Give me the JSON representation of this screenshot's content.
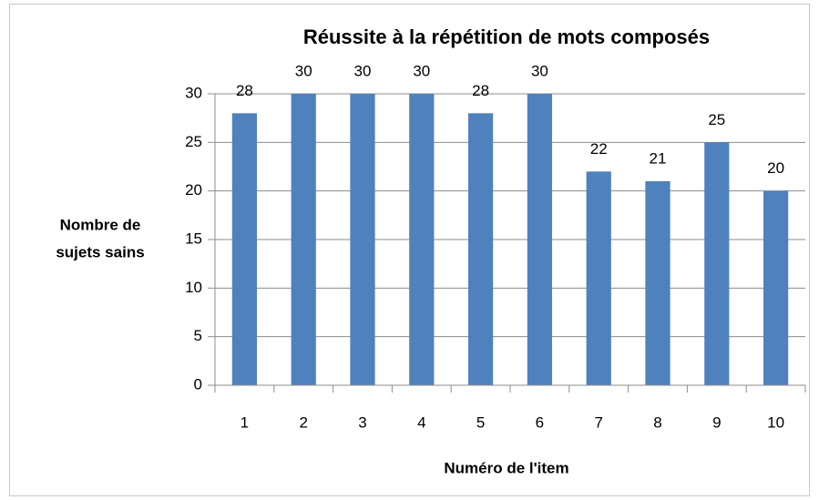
{
  "chart_data": {
    "type": "bar",
    "title": "Réussite à la répétition de mots composés",
    "y_label": [
      "Nombre de",
      "sujets sains"
    ],
    "x_label": "Numéro de l'item",
    "categories": [
      "1",
      "2",
      "3",
      "4",
      "5",
      "6",
      "7",
      "8",
      "9",
      "10"
    ],
    "values": [
      28,
      30,
      30,
      30,
      28,
      30,
      22,
      21,
      25,
      20
    ],
    "color": "#4f81bd",
    "ylim": [
      0,
      30
    ],
    "yticks": [
      0,
      5,
      10,
      15,
      20,
      25,
      30
    ],
    "grid": true
  }
}
